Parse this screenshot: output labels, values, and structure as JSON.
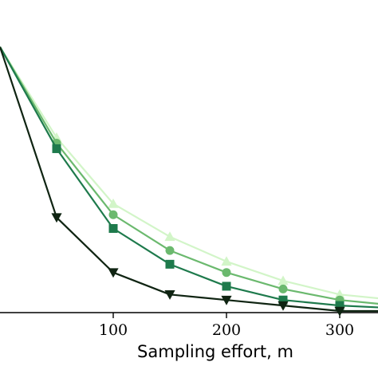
{
  "chart_data": {
    "type": "line",
    "title": "",
    "xlabel": "Sampling effort, m",
    "ylabel": "",
    "xlim": [
      0,
      350
    ],
    "ylim": [
      0,
      1
    ],
    "x_ticks": [
      100,
      200,
      300
    ],
    "x_tick_labels": [
      "100",
      "200",
      "300"
    ],
    "grid": false,
    "legend": "none",
    "x": [
      0,
      50,
      100,
      150,
      200,
      250,
      300,
      350
    ],
    "series": [
      {
        "marker": "triangle-up",
        "color": "#d2f5c8",
        "values": [
          0.96,
          0.63,
          0.39,
          0.27,
          0.18,
          0.11,
          0.06,
          0.04
        ]
      },
      {
        "marker": "circle",
        "color": "#6bb96e",
        "values": [
          0.96,
          0.61,
          0.35,
          0.22,
          0.14,
          0.08,
          0.04,
          0.02
        ]
      },
      {
        "marker": "square",
        "color": "#1e7a4c",
        "values": [
          0.96,
          0.59,
          0.3,
          0.17,
          0.09,
          0.04,
          0.02,
          0.01
        ]
      },
      {
        "marker": "triangle-down",
        "color": "#0f2412",
        "values": [
          0.96,
          0.34,
          0.14,
          0.06,
          0.04,
          0.02,
          0.0,
          0.0
        ]
      }
    ]
  }
}
